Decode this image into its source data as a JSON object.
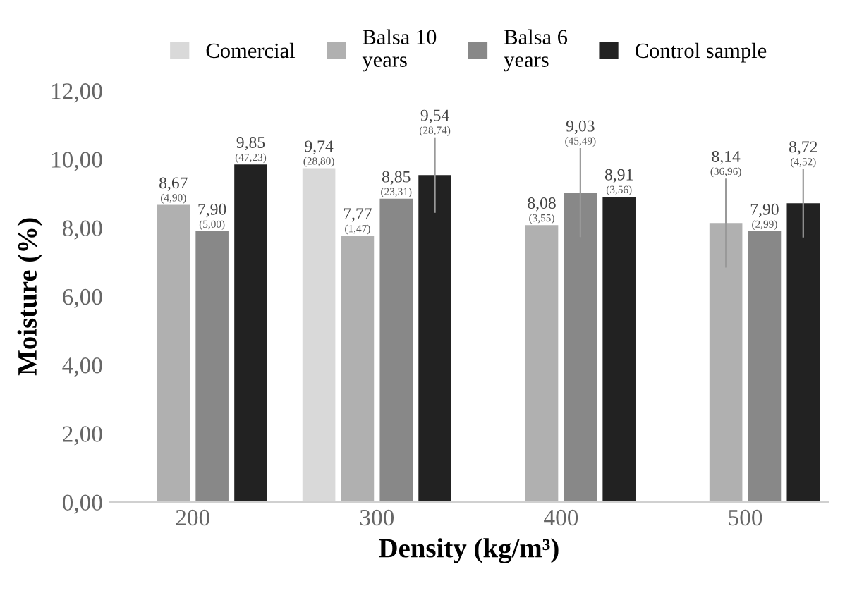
{
  "chart_data": {
    "type": "bar",
    "xlabel": "Density (kg/m³)",
    "ylabel": "Moisture (%)",
    "categories": [
      "200",
      "300",
      "400",
      "500"
    ],
    "series": [
      {
        "name": "Comercial",
        "color": "#d9d9d9",
        "values": [
          null,
          9.74,
          null,
          null
        ],
        "value_labels": [
          null,
          "9,74\n(28,80)",
          null,
          null
        ],
        "errors": [
          null,
          null,
          null,
          null
        ]
      },
      {
        "name": "Balsa 10\nyears",
        "color": "#b0b0b0",
        "values": [
          8.67,
          7.77,
          8.08,
          8.14
        ],
        "value_labels": [
          "8,67\n(4,90)",
          "7,77\n(1,47)",
          "8,08\n(3,55)",
          "8,14\n(36,96)"
        ],
        "errors": [
          null,
          null,
          null,
          1.3
        ]
      },
      {
        "name": "Balsa 6\nyears",
        "color": "#888888",
        "values": [
          7.9,
          8.85,
          9.03,
          7.9
        ],
        "value_labels": [
          "7,90\n(5,00)",
          "8,85\n(23,31)",
          "9,03\n(45,49)",
          "7,90\n(2,99)"
        ],
        "errors": [
          null,
          null,
          1.3,
          null
        ]
      },
      {
        "name": "Control sample",
        "color": "#222222",
        "values": [
          9.85,
          9.54,
          8.91,
          8.72
        ],
        "value_labels": [
          "9,85\n(47,23)",
          "9,54\n(28,74)",
          "8,91\n(3,56)",
          "8,72\n(4,52)"
        ],
        "errors": [
          null,
          1.1,
          null,
          1.0
        ]
      }
    ],
    "ylim": [
      0,
      12
    ],
    "yticks": [
      {
        "value": 0,
        "label": "0,00"
      },
      {
        "value": 2,
        "label": "2,00"
      },
      {
        "value": 4,
        "label": "4,00"
      },
      {
        "value": 6,
        "label": "6,00"
      },
      {
        "value": 8,
        "label": "8,00"
      },
      {
        "value": 10,
        "label": "10,00"
      },
      {
        "value": 12,
        "label": "12,00"
      }
    ],
    "grid": false,
    "legend": "top"
  }
}
